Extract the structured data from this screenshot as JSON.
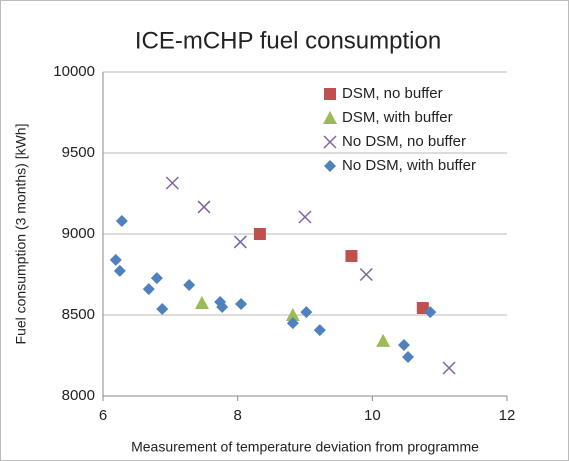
{
  "chart_data": {
    "type": "scatter",
    "title": "ICE-mCHP fuel consumption",
    "xlabel": "Measurement of temperature deviation from programme",
    "ylabel": "Fuel consumption (3 months) [kWh]",
    "xlim": [
      6,
      12
    ],
    "xticks": [
      6,
      8,
      10,
      12
    ],
    "ylim": [
      8000,
      10000
    ],
    "yticks": [
      8000,
      8500,
      9000,
      9500,
      10000
    ],
    "grid": true,
    "legend": "upper right",
    "series": [
      {
        "name": "DSM, no buffer",
        "color": "#c0504d",
        "marker": "square",
        "x": [
          8.33,
          9.69,
          10.75
        ],
        "values": [
          9000,
          8864,
          8543
        ]
      },
      {
        "name": "DSM, with buffer",
        "color": "#9bbb59",
        "marker": "triangle",
        "x": [
          7.47,
          8.82,
          10.16
        ],
        "values": [
          8574,
          8500,
          8340
        ]
      },
      {
        "name": "No DSM, no buffer",
        "color": "#8064a2",
        "marker": "cross",
        "x": [
          7.03,
          7.5,
          8.04,
          9.0,
          9.91,
          11.14
        ],
        "values": [
          9315,
          9167,
          8951,
          9105,
          8750,
          8173
        ]
      },
      {
        "name": "No DSM, with buffer",
        "color": "#4f81bd",
        "marker": "diamond",
        "x": [
          6.28,
          6.19,
          6.25,
          6.68,
          6.8,
          6.88,
          7.28,
          7.74,
          7.77,
          8.05,
          8.82,
          9.02,
          9.22,
          10.47,
          10.53,
          10.86
        ],
        "values": [
          9080,
          8840,
          8772,
          8660,
          8728,
          8537,
          8685,
          8580,
          8549,
          8568,
          8450,
          8518,
          8407,
          8315,
          8241,
          8518
        ]
      }
    ]
  }
}
